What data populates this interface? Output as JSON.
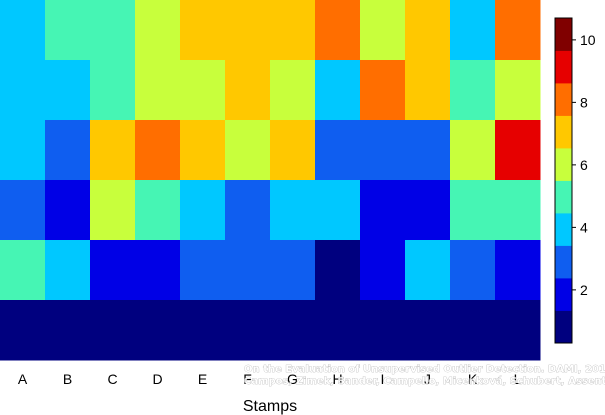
{
  "chart_data": {
    "type": "heatmap",
    "xlabel": "Stamps",
    "categories": [
      "A",
      "B",
      "C",
      "D",
      "E",
      "F",
      "G",
      "H",
      "I",
      "J",
      "K",
      "L"
    ],
    "rows": [
      [
        4,
        5,
        5,
        6,
        7,
        7,
        7,
        8,
        6,
        7,
        4,
        8
      ],
      [
        4,
        4,
        5,
        6,
        6,
        7,
        6,
        4,
        8,
        7,
        5,
        6
      ],
      [
        4,
        3,
        7,
        8,
        7,
        6,
        7,
        3,
        3,
        3,
        6,
        9
      ],
      [
        3,
        2,
        6,
        5,
        4,
        3,
        4,
        4,
        2,
        2,
        5,
        5
      ],
      [
        5,
        4,
        2,
        2,
        3,
        3,
        3,
        1,
        2,
        4,
        3,
        2
      ],
      [
        1,
        1,
        1,
        1,
        1,
        1,
        1,
        1,
        1,
        1,
        1,
        1
      ]
    ],
    "colorbar": {
      "min": 0.3,
      "max": 10.7,
      "ticks": [
        2,
        4,
        6,
        8,
        10
      ],
      "colors": [
        "#00007f",
        "#0000e6",
        "#0f5ef0",
        "#00c8ff",
        "#46f5b4",
        "#c8ff3c",
        "#ffc800",
        "#ff6e00",
        "#e60000",
        "#800000"
      ]
    },
    "grid": false,
    "legend": "colorbar-right"
  },
  "credit": {
    "line1": "On the Evaluation of Unsupervised Outlier Detection. DAMI, 2015.",
    "line2": "Campos, Zimek, Sander, Campello, Micenková, Schubert, Assent, Houle"
  }
}
